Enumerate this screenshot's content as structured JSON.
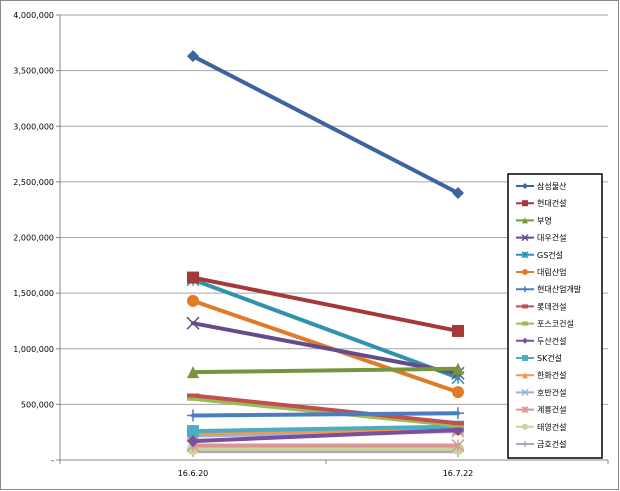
{
  "chart_data": {
    "type": "line",
    "title": "",
    "xlabel": "",
    "ylabel": "",
    "categories": [
      "16.6.20",
      "16.7.22"
    ],
    "ylim": [
      0,
      4000000
    ],
    "yticks": [
      "-",
      "500,000",
      "1,000,000",
      "1,500,000",
      "2,000,000",
      "2,500,000",
      "3,000,000",
      "3,500,000",
      "4,000,000"
    ],
    "grid": true,
    "legend": "right",
    "series": [
      {
        "name": "삼성물산",
        "values": [
          3630000,
          2400000
        ],
        "color": "#3b64a0",
        "marker": "diamond"
      },
      {
        "name": "현대건설",
        "values": [
          1640000,
          1160000
        ],
        "color": "#a5393a",
        "marker": "square"
      },
      {
        "name": "부영",
        "values": [
          790000,
          820000
        ],
        "color": "#77963c",
        "marker": "triangle"
      },
      {
        "name": "대우건설",
        "values": [
          1230000,
          780000
        ],
        "color": "#644b8a",
        "marker": "x"
      },
      {
        "name": "GS건설",
        "values": [
          1620000,
          740000
        ],
        "color": "#2f93ad",
        "marker": "star"
      },
      {
        "name": "대림산업",
        "values": [
          1430000,
          610000
        ],
        "color": "#e07b28",
        "marker": "circle"
      },
      {
        "name": "현대산업개발",
        "values": [
          400000,
          420000
        ],
        "color": "#4a7ebf",
        "marker": "plus"
      },
      {
        "name": "롯데건설",
        "values": [
          580000,
          330000
        ],
        "color": "#c0504d",
        "marker": "dash"
      },
      {
        "name": "포스코건설",
        "values": [
          550000,
          310000
        ],
        "color": "#9bbb59",
        "marker": "dash"
      },
      {
        "name": "두산건설",
        "values": [
          170000,
          270000
        ],
        "color": "#7b4fa0",
        "marker": "diamond"
      },
      {
        "name": "SK건설",
        "values": [
          260000,
          300000
        ],
        "color": "#4bacc6",
        "marker": "square"
      },
      {
        "name": "한화건설",
        "values": [
          240000,
          280000
        ],
        "color": "#f79646",
        "marker": "triangle"
      },
      {
        "name": "호반건설",
        "values": [
          220000,
          260000
        ],
        "color": "#95b3d7",
        "marker": "x"
      },
      {
        "name": "계룡건설",
        "values": [
          130000,
          130000
        ],
        "color": "#d99694",
        "marker": "star"
      },
      {
        "name": "태영건설",
        "values": [
          100000,
          100000
        ],
        "color": "#c3d69b",
        "marker": "circle"
      },
      {
        "name": "금호건설",
        "values": [
          80000,
          80000
        ],
        "color": "#b2a2c7",
        "marker": "plus"
      }
    ]
  }
}
